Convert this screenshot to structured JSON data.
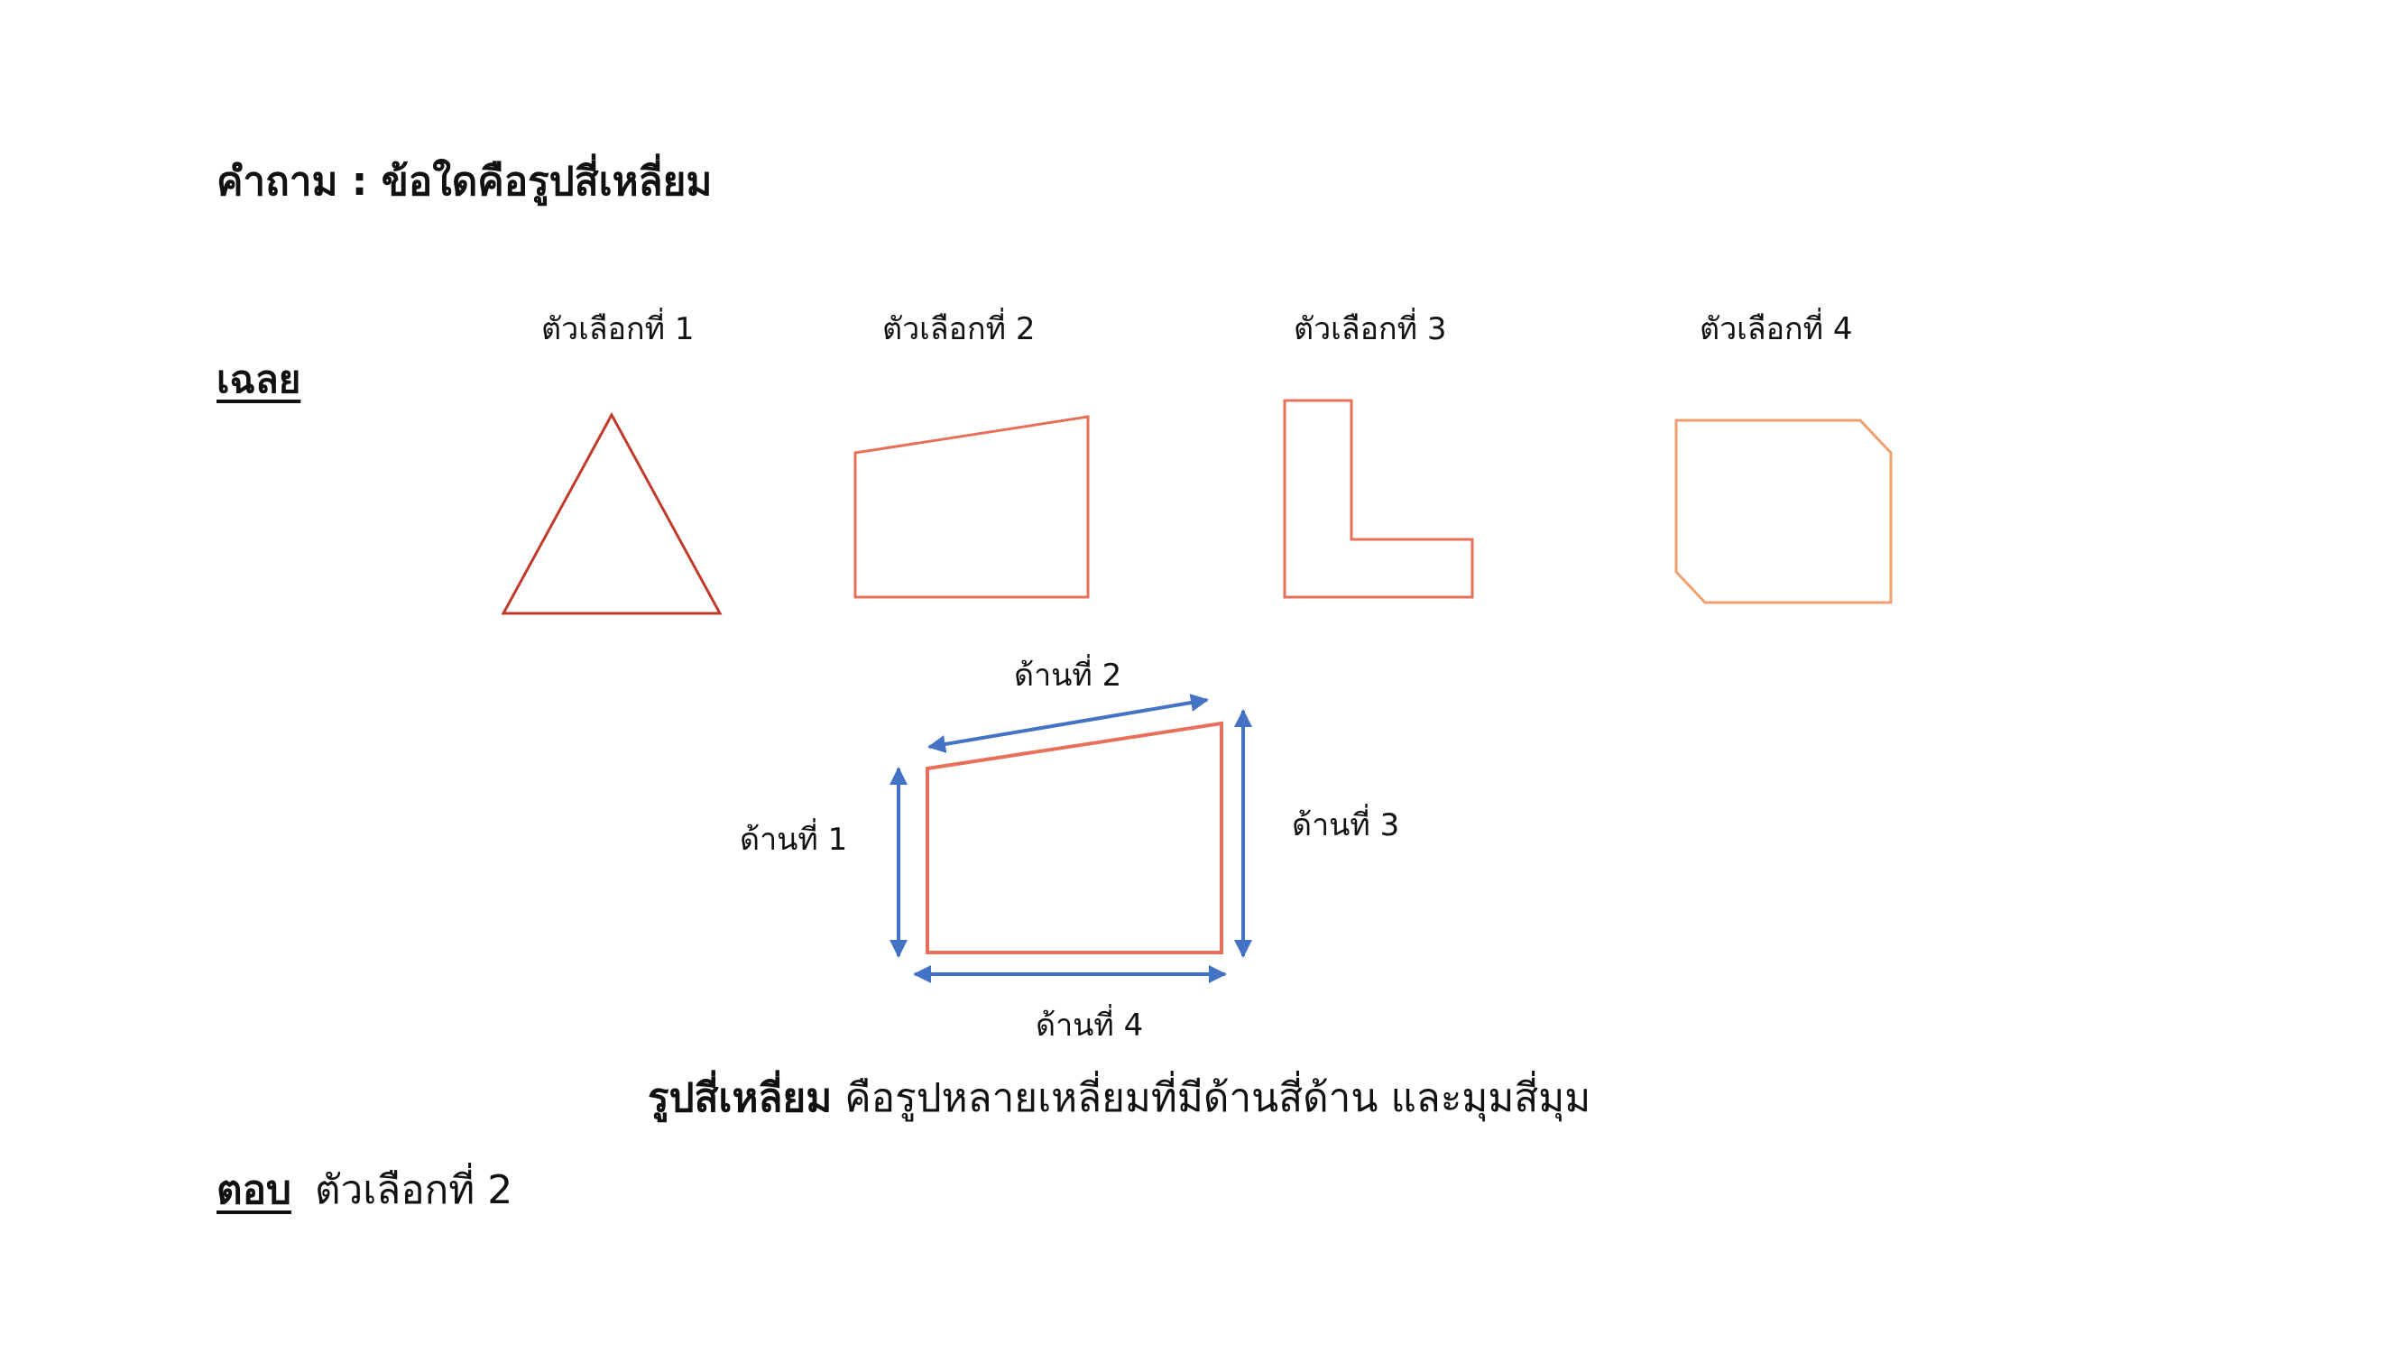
{
  "question": "คำถาม :  ข้อใดคือรูปสี่เหลี่ยม",
  "answer_heading": "เฉลย",
  "options": [
    {
      "label": "ตัวเลือกที่ 1",
      "shape": "triangle-icon",
      "color": "#C0392B"
    },
    {
      "label": "ตัวเลือกที่ 2",
      "shape": "quadrilateral-icon",
      "color": "#E8705A"
    },
    {
      "label": "ตัวเลือกที่ 3",
      "shape": "l-shape-icon",
      "color": "#E8705A"
    },
    {
      "label": "ตัวเลือกที่ 4",
      "shape": "octagon-icon",
      "color": "#F0A070"
    }
  ],
  "diagram": {
    "sides": [
      "ด้านที่ 1",
      "ด้านที่ 2",
      "ด้านที่ 3",
      "ด้านที่ 4"
    ],
    "shape_color": "#E8705A",
    "arrow_color": "#4472C4"
  },
  "definition": {
    "term": "รูปสี่เหลี่ยม",
    "text": " คือรูปหลายเหลี่ยมที่มีด้านสี่ด้าน และมุมสี่มุม"
  },
  "final_answer": {
    "label": "ตอบ",
    "value": "ตัวเลือกที่ 2"
  }
}
